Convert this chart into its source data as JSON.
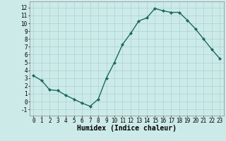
{
  "x": [
    0,
    1,
    2,
    3,
    4,
    5,
    6,
    7,
    8,
    9,
    10,
    11,
    12,
    13,
    14,
    15,
    16,
    17,
    18,
    19,
    20,
    21,
    22,
    23
  ],
  "y": [
    3.3,
    2.7,
    1.5,
    1.4,
    0.8,
    0.3,
    -0.2,
    -0.6,
    0.3,
    3.0,
    5.0,
    7.3,
    8.7,
    10.3,
    10.7,
    11.9,
    11.6,
    11.4,
    11.4,
    10.4,
    9.3,
    8.0,
    6.7,
    5.5
  ],
  "line_color": "#1a6b5a",
  "marker": "D",
  "markersize": 2.0,
  "linewidth": 1.0,
  "bg_color": "#cceae8",
  "grid_color": "#aad4d0",
  "xlabel": "Humidex (Indice chaleur)",
  "xlabel_fontsize": 7,
  "xlim": [
    -0.5,
    23.5
  ],
  "ylim": [
    -1.8,
    12.8
  ],
  "yticks": [
    -1,
    0,
    1,
    2,
    3,
    4,
    5,
    6,
    7,
    8,
    9,
    10,
    11,
    12
  ],
  "xticks": [
    0,
    1,
    2,
    3,
    4,
    5,
    6,
    7,
    8,
    9,
    10,
    11,
    12,
    13,
    14,
    15,
    16,
    17,
    18,
    19,
    20,
    21,
    22,
    23
  ],
  "tick_fontsize": 5.5,
  "fig_bg": "#cceae8",
  "spine_color": "#888888"
}
